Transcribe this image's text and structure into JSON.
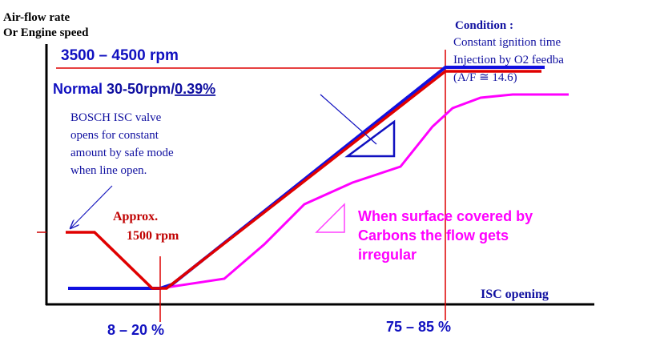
{
  "y_axis_label": [
    "Air-flow rate",
    "Or Engine speed"
  ],
  "top_speed": "3500 – 4500 rpm",
  "condition": {
    "title": "Condition :",
    "lines": [
      "Constant ignition time",
      "Injection by O2 feedba",
      "(A/F ≅ 14.6)"
    ]
  },
  "normal": {
    "label": "Normal",
    "range": "30-50rpm/",
    "slope": "0.39%"
  },
  "bosch_note": [
    "BOSCH ISC valve",
    "opens for constant",
    "amount by safe mode",
    "when line open."
  ],
  "approx": [
    "Approx.",
    "1500 rpm"
  ],
  "carbon_note": [
    "When surface covered by",
    "Carbons the flow gets",
    "irregular"
  ],
  "x_axis_label": "ISC opening",
  "x_marks": [
    "8 – 20 %",
    "75 – 85 %"
  ]
}
